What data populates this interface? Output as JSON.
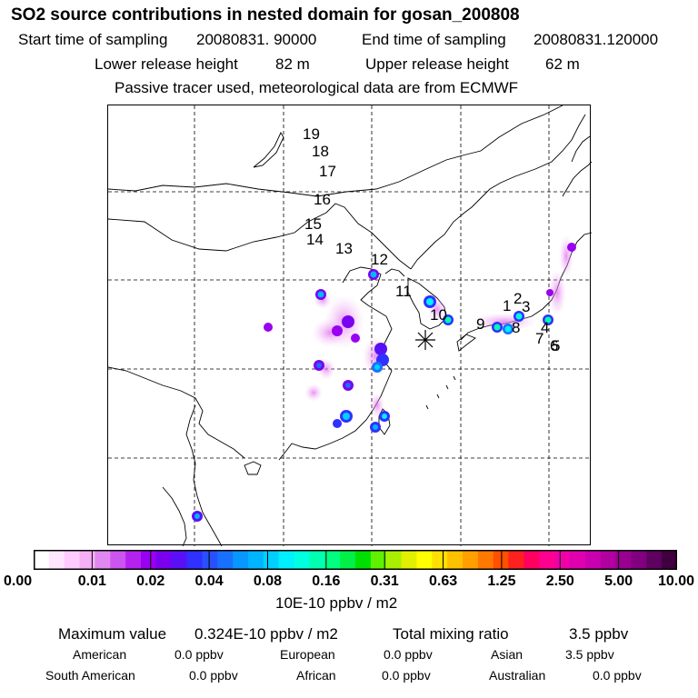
{
  "title": "SO2 source contributions in nested domain for gosan_200808",
  "sampling": {
    "start_label": "Start time of sampling",
    "start_value": "20080831. 90000",
    "end_label": "End time of sampling",
    "end_value": "20080831.120000"
  },
  "release": {
    "lower_label": "Lower release height",
    "lower_value": "82 m",
    "upper_label": "Upper release height",
    "upper_value": "62 m"
  },
  "note": "Passive tracer used, meteorological data are from ECMWF",
  "trajectory_labels": [
    "19",
    "18",
    "17",
    "16",
    "15",
    "14",
    "13",
    "12",
    "11",
    "10",
    "9",
    "8",
    "7",
    "6",
    "5",
    "4",
    "3",
    "2",
    "1"
  ],
  "colorbar": {
    "ticks": [
      "0.00",
      "0.01",
      "0.02",
      "0.04",
      "0.08",
      "0.16",
      "0.31",
      "0.63",
      "1.25",
      "2.50",
      "5.00",
      "10.00"
    ],
    "unit": "10E-10 ppbv / m2",
    "colors": [
      "#ffffff",
      "#ffe6ff",
      "#ffccff",
      "#f5b0f5",
      "#e088f0",
      "#cc55f0",
      "#b422f0",
      "#9a00f0",
      "#7a00f0",
      "#5a10f5",
      "#3030ff",
      "#2850ff",
      "#1870ff",
      "#0896ff",
      "#00b4ff",
      "#00d0ff",
      "#00f0ff",
      "#00ffe0",
      "#00ffb0",
      "#00ff80",
      "#00f048",
      "#00e000",
      "#60f000",
      "#a8f000",
      "#e0f000",
      "#ffff00",
      "#ffe000",
      "#ffc000",
      "#ffa000",
      "#ff7800",
      "#ff5000",
      "#ff2020",
      "#ff0060",
      "#ff0090",
      "#f000a8",
      "#e000b0",
      "#c800b0",
      "#b000a0",
      "#980090",
      "#800080",
      "#600060",
      "#400040"
    ]
  },
  "summary": {
    "max_label": "Maximum value",
    "max_value": "0.324E-10 ppbv / m2",
    "total_label": "Total mixing ratio",
    "total_value": "3.5 ppbv"
  },
  "regions": [
    {
      "name": "American",
      "value": "0.0 ppbv"
    },
    {
      "name": "European",
      "value": "0.0 ppbv"
    },
    {
      "name": "Asian",
      "value": "3.5 ppbv"
    },
    {
      "name": "South American",
      "value": "0.0 ppbv"
    },
    {
      "name": "African",
      "value": "0.0 ppbv"
    },
    {
      "name": "Australian",
      "value": "0.0 ppbv"
    }
  ]
}
